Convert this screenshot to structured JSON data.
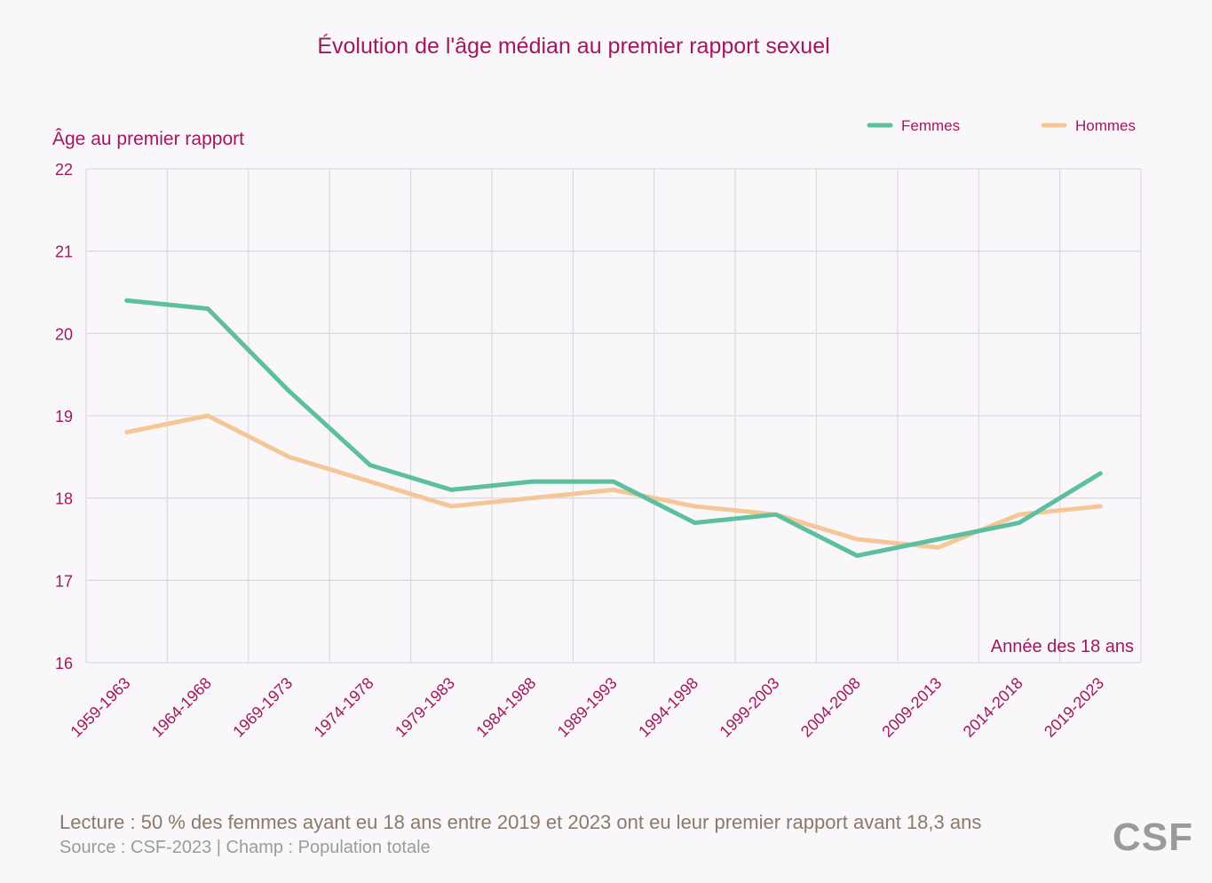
{
  "chart_data": {
    "type": "line",
    "title": "Évolution de l'âge médian au premier rapport sexuel",
    "ylabel": "Âge au premier rapport",
    "xlabel": "Année des 18 ans",
    "ylim": [
      16,
      22
    ],
    "yticks": [
      "16",
      "17",
      "18",
      "19",
      "20",
      "21",
      "22"
    ],
    "grid": true,
    "legend_position": "top-right",
    "categories": [
      "1959-1963",
      "1964-1968",
      "1969-1973",
      "1974-1978",
      "1979-1983",
      "1984-1988",
      "1989-1993",
      "1994-1998",
      "1999-2003",
      "2004-2008",
      "2009-2013",
      "2014-2018",
      "2019-2023"
    ],
    "series": [
      {
        "name": "Femmes",
        "color": "#5cbf9f",
        "values": [
          20.4,
          20.3,
          19.3,
          18.4,
          18.1,
          18.2,
          18.2,
          17.7,
          17.8,
          17.3,
          17.5,
          17.7,
          18.3
        ]
      },
      {
        "name": "Hommes",
        "color": "#f5c796",
        "values": [
          18.8,
          19.0,
          18.5,
          18.2,
          17.9,
          18.0,
          18.1,
          17.9,
          17.8,
          17.5,
          17.4,
          17.8,
          17.9
        ]
      }
    ]
  },
  "footer": {
    "lecture": "Lecture : 50 % des femmes ayant eu 18 ans entre 2019 et 2023 ont eu leur premier rapport avant 18,3 ans",
    "source": "Source : CSF-2023  |  Champ : Population totale",
    "logo": "CSF"
  }
}
